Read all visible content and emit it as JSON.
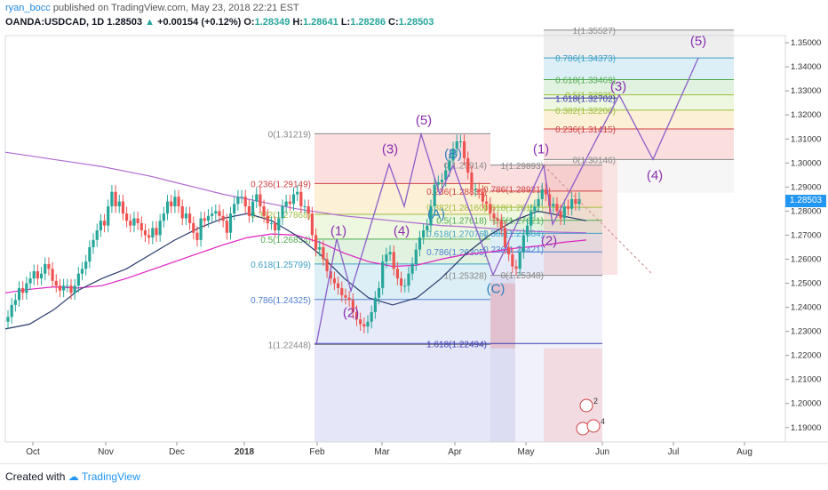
{
  "header": {
    "author": "ryan_bocc",
    "published_text": "published on TradingView.com, May 23, 2018 22:21 EST",
    "symbol": "OANDA:USDCAD, 1D",
    "last": "1.28503",
    "change": "+0.00154 (+0.12%)",
    "o_label": "O:",
    "o_value": "1.28349",
    "h_label": "H:",
    "h_value": "1.28641",
    "l_label": "L:",
    "l_value": "1.28286",
    "c_label": "C:",
    "c_value": "1.28503"
  },
  "footer": {
    "created_with": "Created with",
    "brand": "TradingView"
  },
  "price_label": "1.28503",
  "chart_data": {
    "type": "candlestick",
    "symbol": "OANDA:USDCAD",
    "timeframe": "1D",
    "x_labels": [
      "Oct",
      "Nov",
      "Dec",
      "2018",
      "Feb",
      "Mar",
      "Apr",
      "May",
      "Jun",
      "Jul",
      "Aug"
    ],
    "y_labels": [
      "1.35000",
      "1.34000",
      "1.33000",
      "1.32000",
      "1.31000",
      "1.30000",
      "1.29000",
      "1.28000",
      "1.27000",
      "1.26000",
      "1.25000",
      "1.24000",
      "1.23000",
      "1.22000",
      "1.21000",
      "1.20000",
      "1.19000"
    ],
    "ylim": [
      1.184,
      1.353
    ],
    "candles_close_path": [
      1.236,
      1.241,
      1.243,
      1.248,
      1.246,
      1.25,
      1.252,
      1.255,
      1.252,
      1.254,
      1.258,
      1.256,
      1.251,
      1.249,
      1.247,
      1.249,
      1.249,
      1.246,
      1.249,
      1.254,
      1.256,
      1.259,
      1.265,
      1.268,
      1.272,
      1.276,
      1.274,
      1.282,
      1.288,
      1.282,
      1.284,
      1.279,
      1.276,
      1.274,
      1.277,
      1.275,
      1.272,
      1.27,
      1.269,
      1.273,
      1.27,
      1.276,
      1.279,
      1.284,
      1.282,
      1.286,
      1.282,
      1.277,
      1.279,
      1.275,
      1.271,
      1.268,
      1.277,
      1.276,
      1.278,
      1.279,
      1.28,
      1.278,
      1.276,
      1.271,
      1.279,
      1.283,
      1.286,
      1.286,
      1.282,
      1.278,
      1.284,
      1.287,
      1.282,
      1.278,
      1.275,
      1.275,
      1.272,
      1.277,
      1.282,
      1.284,
      1.283,
      1.287,
      1.288,
      1.282,
      1.282,
      1.279,
      1.27,
      1.264,
      1.265,
      1.26,
      1.255,
      1.252,
      1.25,
      1.248,
      1.245,
      1.244,
      1.243,
      1.238,
      1.235,
      1.233,
      1.232,
      1.234,
      1.238,
      1.244,
      1.248,
      1.259,
      1.262,
      1.263,
      1.256,
      1.252,
      1.249,
      1.249,
      1.254,
      1.258,
      1.264,
      1.269,
      1.272,
      1.274,
      1.282,
      1.291,
      1.292,
      1.293,
      1.297,
      1.301,
      1.306,
      1.309,
      1.309,
      1.302,
      1.296,
      1.289,
      1.289,
      1.288,
      1.284,
      1.283,
      1.279,
      1.277,
      1.276,
      1.273,
      1.265,
      1.262,
      1.257,
      1.256,
      1.263,
      1.27,
      1.274,
      1.28,
      1.282,
      1.285,
      1.289,
      1.287,
      1.282,
      1.283,
      1.28,
      1.277,
      1.282,
      1.281,
      1.285,
      1.283,
      1.285
    ],
    "moving_averages": [
      {
        "name": "",
        "color": "#b06ad3",
        "values": [
          1.3045,
          1.303,
          1.3015,
          1.3,
          1.2985,
          1.2965,
          1.2945,
          1.292,
          1.2895,
          1.287,
          1.285,
          1.283,
          1.281,
          1.2795,
          1.278,
          1.277,
          1.276,
          1.275,
          1.274,
          1.2735,
          1.2728,
          1.272,
          1.2715,
          1.2712,
          1.271
        ]
      },
      {
        "name": "",
        "color": "#e020c0",
        "values": [
          1.246,
          1.2475,
          1.2485,
          1.248,
          1.249,
          1.252,
          1.2555,
          1.259,
          1.2625,
          1.266,
          1.269,
          1.2705,
          1.27,
          1.267,
          1.2625,
          1.259,
          1.257,
          1.2575,
          1.26,
          1.262,
          1.263,
          1.2645,
          1.2655,
          1.267,
          1.268
        ]
      },
      {
        "name": "",
        "color": "#2a3b6e",
        "values": [
          1.231,
          1.233,
          1.239,
          1.247,
          1.252,
          1.256,
          1.262,
          1.268,
          1.273,
          1.277,
          1.279,
          1.276,
          1.27,
          1.262,
          1.252,
          1.244,
          1.241,
          1.244,
          1.252,
          1.262,
          1.27,
          1.276,
          1.28,
          1.278,
          1.276
        ]
      }
    ],
    "fib_retracement_1": [
      {
        "label": "0(1.31219)",
        "value": 1.31219
      },
      {
        "label": "0.236(1.29149)",
        "value": 1.29149
      },
      {
        "label": "0.382(1.27868)",
        "value": 1.27868
      },
      {
        "label": "0.5(1.26834)",
        "value": 1.26834
      },
      {
        "label": "0.618(1.25799)",
        "value": 1.25799
      },
      {
        "label": "0.786(1.24325)",
        "value": 1.24325
      },
      {
        "label": "1(1.22448)",
        "value": 1.22448
      },
      {
        "label": "1.618(1.22494)",
        "value": 1.22494
      }
    ],
    "fib_retracement_2": [
      {
        "label": "0(1.29914)",
        "value": 1.29914
      },
      {
        "label": "0.236(1.28831)",
        "value": 1.28831
      },
      {
        "label": "0.382(1.28160)",
        "value": 1.2816
      },
      {
        "label": "0.5(1.27618)",
        "value": 1.27618
      },
      {
        "label": "0.618(1.27076)",
        "value": 1.27076
      },
      {
        "label": "0.786(1.26305)",
        "value": 1.26305
      },
      {
        "label": "1(1.25328)",
        "value": 1.25328
      }
    ],
    "fib_retracement_3": [
      {
        "label": "1(1.29893)",
        "value": 1.29893
      },
      {
        "label": "0.786(1.28921)",
        "value": 1.28921
      },
      {
        "label": "0.618(1.28157)",
        "value": 1.28157
      },
      {
        "label": "0.5(1.27621)",
        "value": 1.27621
      },
      {
        "label": "0.382(1.27084)",
        "value": 1.27084
      },
      {
        "label": "0.236(1.26421)",
        "value": 1.26421
      },
      {
        "label": "0(1.25348)",
        "value": 1.25348
      }
    ],
    "fib_extension_4": [
      {
        "label": "1(1.35527)",
        "value": 1.35527
      },
      {
        "label": "0.786(1.34373)",
        "value": 1.34373
      },
      {
        "label": "0.618(1.33469)",
        "value": 1.33469
      },
      {
        "label": "0.5(1.32835)",
        "value": 1.32835
      },
      {
        "label": "0.382(1.32200)",
        "value": 1.322
      },
      {
        "label": "0.236(1.31415)",
        "value": 1.31415
      },
      {
        "label": "0(1.30146)",
        "value": 1.30146
      },
      {
        "label": "1.618(1.32702)",
        "value": 1.32702
      }
    ],
    "elliott_labels": [
      {
        "text": "(1)",
        "wave": "impulse"
      },
      {
        "text": "(2)",
        "wave": "impulse"
      },
      {
        "text": "(3)",
        "wave": "impulse"
      },
      {
        "text": "(4)",
        "wave": "impulse"
      },
      {
        "text": "(5)",
        "wave": "impulse"
      },
      {
        "text": "(A)",
        "wave": "correction"
      },
      {
        "text": "(B)",
        "wave": "correction"
      },
      {
        "text": "(C)",
        "wave": "correction"
      },
      {
        "text": "(1)",
        "wave": "projection"
      },
      {
        "text": "(2)",
        "wave": "projection"
      },
      {
        "text": "(3)",
        "wave": "projection"
      },
      {
        "text": "(4)",
        "wave": "projection"
      },
      {
        "text": "(5)",
        "wave": "projection"
      }
    ],
    "event_badges": [
      "2",
      "6",
      "4"
    ],
    "colors": {
      "up": "#26a69a",
      "down": "#ef5350",
      "impulse": "#8b2fb0",
      "correction": "#2a7fbf"
    }
  }
}
